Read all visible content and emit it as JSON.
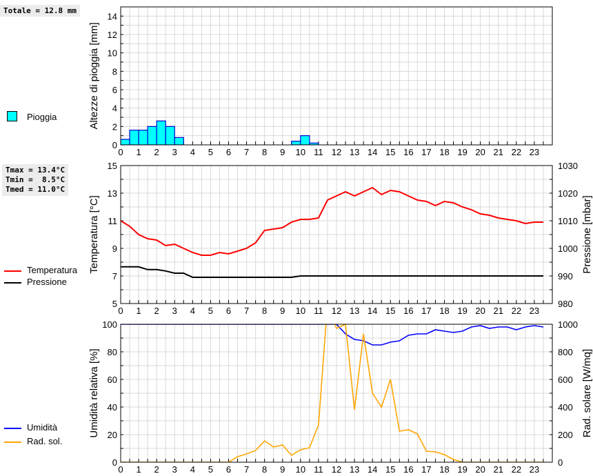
{
  "totals_box": "Totale = 12.8 mm",
  "temp_box": [
    "Tmax = 13.4°C",
    "Tmin =  8.5°C",
    "Tmed = 11.0°C"
  ],
  "legend": {
    "rain": "Pioggia",
    "temp": "Temperatura",
    "press": "Pressione",
    "hum": "Umidità",
    "rad": "Rad. sol."
  },
  "colors": {
    "rain": "#00ffff",
    "rain_edge": "#0000cc",
    "temp": "#ff0000",
    "press": "#000000",
    "hum": "#0000ff",
    "rad": "#ffa500"
  },
  "chart_data": [
    {
      "type": "bar",
      "title": "",
      "ylabel": "Altezze di pioggia [mm]",
      "xlabel": "",
      "xlim": [
        0,
        24
      ],
      "ylim": [
        0,
        15
      ],
      "yticks": [
        0,
        2,
        4,
        6,
        8,
        10,
        12,
        14
      ],
      "x": [
        0,
        0.5,
        1,
        1.5,
        2,
        2.5,
        3,
        9.5,
        10,
        10.5
      ],
      "values": [
        0.6,
        1.6,
        1.6,
        2.0,
        2.6,
        2.0,
        0.8,
        0.4,
        1.0,
        0.2
      ],
      "bar_width": 0.5
    },
    {
      "type": "line",
      "ylabel": "Temperatura [°C]",
      "y2label": "Pressione [mbar]",
      "xlim": [
        0,
        24
      ],
      "ylim": [
        5,
        15
      ],
      "y2lim": [
        980,
        1030
      ],
      "yticks": [
        5,
        7,
        9,
        11,
        13,
        15
      ],
      "y2ticks": [
        980,
        990,
        1000,
        1010,
        1020,
        1030
      ],
      "series": [
        {
          "name": "Temperatura",
          "axis": "left",
          "values": [
            11.0,
            10.6,
            10.0,
            9.7,
            9.6,
            9.2,
            9.3,
            9.0,
            8.7,
            8.5,
            8.5,
            8.7,
            8.6,
            8.8,
            9.0,
            9.4,
            10.3,
            10.4,
            10.5,
            10.9,
            11.1,
            11.1,
            11.2,
            12.5,
            12.8,
            13.1,
            12.8,
            13.1,
            13.4,
            12.9,
            13.2,
            13.1,
            12.8,
            12.5,
            12.4,
            12.1,
            12.4,
            12.3,
            12.0,
            11.8,
            11.5,
            11.4,
            11.2,
            11.1,
            11.0,
            10.8,
            10.9,
            10.9
          ]
        },
        {
          "name": "Pressione",
          "axis": "right",
          "values": [
            993.3,
            993.3,
            993.3,
            992.3,
            992.3,
            991.8,
            991,
            991,
            989.5,
            989.5,
            989.5,
            989.5,
            989.5,
            989.5,
            989.5,
            989.5,
            989.5,
            989.5,
            989.5,
            989.5,
            990,
            990,
            990,
            990,
            990,
            990,
            990,
            990,
            990,
            990,
            990,
            990,
            990,
            990,
            990,
            990,
            990,
            990,
            990,
            990,
            990,
            990,
            990,
            990,
            990,
            990,
            990,
            990
          ]
        }
      ]
    },
    {
      "type": "line",
      "ylabel": "Umidità relativa [%]",
      "y2label": "Rad. solare [W/mq]",
      "xlim": [
        0,
        24
      ],
      "ylim": [
        0,
        100
      ],
      "y2lim": [
        0,
        1000
      ],
      "yticks": [
        0,
        20,
        40,
        60,
        80,
        100
      ],
      "y2ticks": [
        0,
        200,
        400,
        600,
        800,
        1000
      ],
      "xticks": [
        0,
        1,
        2,
        3,
        4,
        5,
        6,
        7,
        8,
        9,
        10,
        11,
        12,
        13,
        14,
        15,
        16,
        17,
        18,
        19,
        20,
        21,
        22,
        23
      ],
      "series": [
        {
          "name": "Umidità",
          "axis": "left",
          "values": [
            100,
            100,
            100,
            100,
            100,
            100,
            100,
            100,
            100,
            100,
            100,
            100,
            100,
            100,
            100,
            100,
            100,
            100,
            100,
            100,
            100,
            100,
            100,
            100,
            100,
            93,
            89,
            88,
            85,
            85,
            87,
            88,
            92,
            93,
            93,
            96,
            95,
            94,
            95,
            98,
            99,
            97,
            98,
            98,
            96,
            98,
            99,
            98
          ]
        },
        {
          "name": "Rad. sol.",
          "axis": "right",
          "values": [
            0,
            0,
            0,
            0,
            0,
            0,
            0,
            0,
            0,
            0,
            0,
            0,
            0,
            40,
            60,
            85,
            155,
            110,
            125,
            50,
            90,
            105,
            270,
            1150,
            970,
            1000,
            380,
            930,
            500,
            400,
            600,
            225,
            235,
            205,
            80,
            75,
            55,
            20,
            0,
            0,
            0,
            0,
            0,
            0,
            0,
            0,
            0,
            0
          ]
        }
      ]
    }
  ]
}
